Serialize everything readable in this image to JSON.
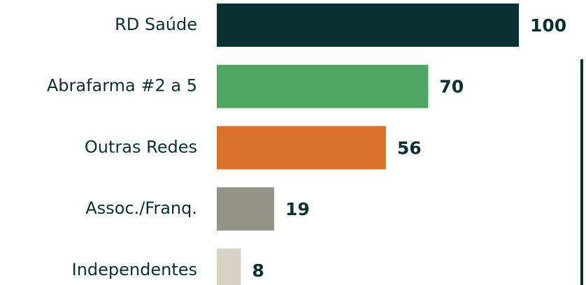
{
  "chart_data": {
    "type": "bar",
    "orientation": "horizontal",
    "categories": [
      "RD Saúde",
      "Abrafarma #2 a 5",
      "Outras Redes",
      "Assoc./Franq.",
      "Independentes"
    ],
    "values": [
      100,
      70,
      56,
      19,
      8
    ],
    "colors": [
      "#0b3030",
      "#4fa662",
      "#d9712a",
      "#94938a",
      "#d6d3c4"
    ]
  }
}
